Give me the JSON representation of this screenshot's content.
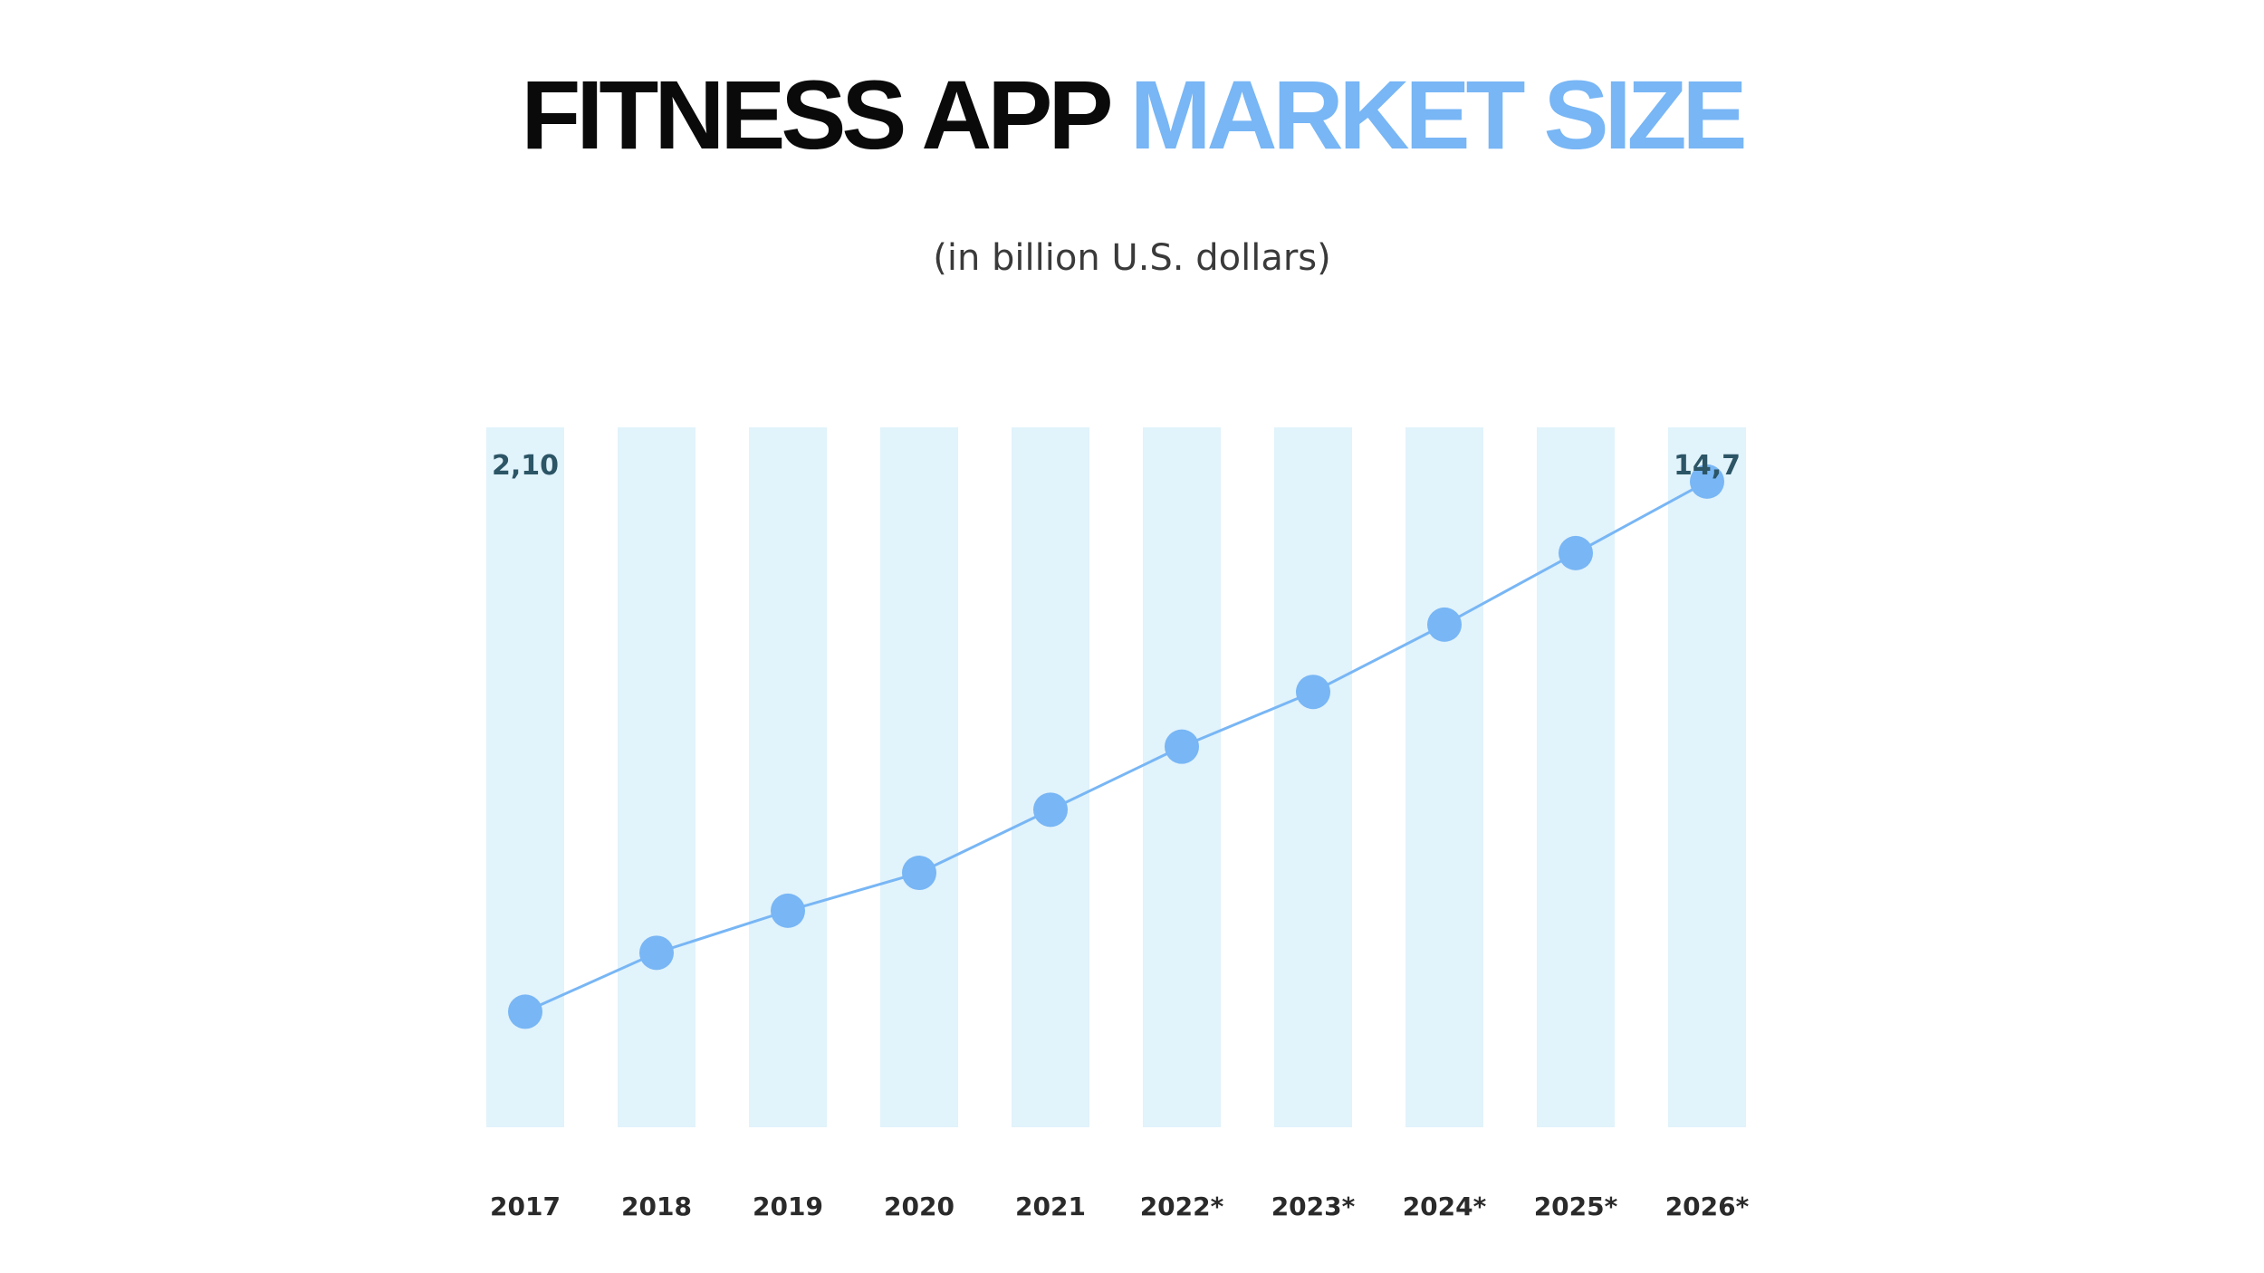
{
  "header": {
    "title_part1": "FITNESS APP",
    "title_part2": "MARKET SIZE",
    "subtitle": "(in billion U.S. dollars)"
  },
  "colors": {
    "accent": "#78b6f5",
    "column_band": "#e1f3fb",
    "line": "#78b6f5",
    "point": "#78b6f5",
    "value_label": "#2c5566",
    "title_dark": "#0a0a0a"
  },
  "chart_data": {
    "type": "line",
    "title": "FITNESS APP MARKET SIZE",
    "subtitle": "(in billion U.S. dollars)",
    "xlabel": "",
    "ylabel": "",
    "categories": [
      "2017",
      "2018",
      "2019",
      "2020",
      "2021",
      "2022*",
      "2023*",
      "2024*",
      "2025*",
      "2026*"
    ],
    "series": [
      {
        "values": [
          2.1,
          3.5,
          4.5,
          5.4,
          6.9,
          8.4,
          9.7,
          11.3,
          13.0,
          14.7
        ]
      }
    ],
    "data_labels": [
      {
        "category": "2017",
        "text": "2,10"
      },
      {
        "category": "2026*",
        "text": "14,7"
      }
    ],
    "ylim": [
      0,
      17
    ],
    "grid": false,
    "legend": "none"
  }
}
